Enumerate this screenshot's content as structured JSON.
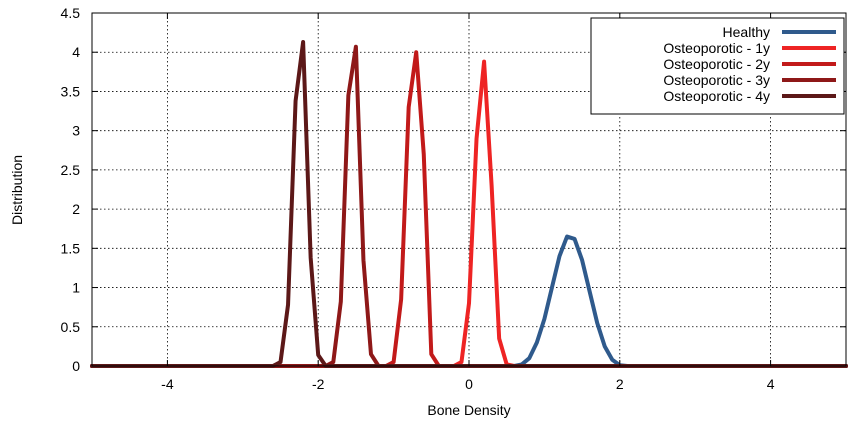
{
  "chart_data": {
    "type": "line",
    "xlabel": "Bone Density",
    "ylabel": "Distribution",
    "xlim": [
      -5,
      5
    ],
    "ylim": [
      0,
      4.5
    ],
    "x_ticks": [
      -4,
      -2,
      0,
      2,
      4
    ],
    "x_tick_labels": [
      "-4",
      "-2",
      "0",
      "2",
      "4"
    ],
    "y_ticks": [
      0,
      0.5,
      1,
      1.5,
      2,
      2.5,
      3,
      3.5,
      4,
      4.5
    ],
    "y_tick_labels": [
      "0",
      "0.5",
      "1",
      "1.5",
      "2",
      "2.5",
      "3",
      "3.5",
      "4",
      "4.5"
    ],
    "grid": true,
    "legend_position": "top-right",
    "series": [
      {
        "name": "Healthy",
        "color": "#2f5a8c",
        "points": [
          [
            -5,
            0
          ],
          [
            0.6,
            0
          ],
          [
            0.7,
            0.02
          ],
          [
            0.8,
            0.1
          ],
          [
            0.9,
            0.3
          ],
          [
            1.0,
            0.6
          ],
          [
            1.1,
            1.0
          ],
          [
            1.2,
            1.4
          ],
          [
            1.3,
            1.65
          ],
          [
            1.4,
            1.62
          ],
          [
            1.5,
            1.35
          ],
          [
            1.6,
            0.95
          ],
          [
            1.7,
            0.55
          ],
          [
            1.8,
            0.25
          ],
          [
            1.9,
            0.08
          ],
          [
            2.0,
            0.01
          ],
          [
            2.1,
            0
          ],
          [
            5,
            0
          ]
        ]
      },
      {
        "name": "Osteoporotic - 1y",
        "color": "#ee2424",
        "points": [
          [
            -5,
            0
          ],
          [
            -0.2,
            0
          ],
          [
            -0.1,
            0.05
          ],
          [
            0.0,
            0.8
          ],
          [
            0.1,
            2.9
          ],
          [
            0.2,
            3.88
          ],
          [
            0.3,
            2.3
          ],
          [
            0.4,
            0.35
          ],
          [
            0.5,
            0.02
          ],
          [
            0.6,
            0
          ],
          [
            5,
            0
          ]
        ]
      },
      {
        "name": "Osteoporotic - 2y",
        "color": "#c21a1a",
        "points": [
          [
            -5,
            0
          ],
          [
            -1.1,
            0
          ],
          [
            -1.0,
            0.05
          ],
          [
            -0.9,
            0.85
          ],
          [
            -0.8,
            3.3
          ],
          [
            -0.7,
            4.0
          ],
          [
            -0.6,
            2.7
          ],
          [
            -0.5,
            0.15
          ],
          [
            -0.4,
            0
          ],
          [
            5,
            0
          ]
        ]
      },
      {
        "name": "Osteoporotic - 3y",
        "color": "#8e1818",
        "points": [
          [
            -5,
            0
          ],
          [
            -1.9,
            0
          ],
          [
            -1.8,
            0.05
          ],
          [
            -1.7,
            0.82
          ],
          [
            -1.6,
            3.45
          ],
          [
            -1.5,
            4.07
          ],
          [
            -1.4,
            1.35
          ],
          [
            -1.3,
            0.15
          ],
          [
            -1.2,
            0
          ],
          [
            5,
            0
          ]
        ]
      },
      {
        "name": "Osteoporotic - 4y",
        "color": "#5c1818",
        "points": [
          [
            -5,
            0
          ],
          [
            -2.6,
            0
          ],
          [
            -2.5,
            0.05
          ],
          [
            -2.4,
            0.78
          ],
          [
            -2.3,
            3.38
          ],
          [
            -2.2,
            4.13
          ],
          [
            -2.1,
            1.38
          ],
          [
            -2.0,
            0.14
          ],
          [
            -1.9,
            0
          ],
          [
            5,
            0
          ]
        ]
      }
    ]
  }
}
